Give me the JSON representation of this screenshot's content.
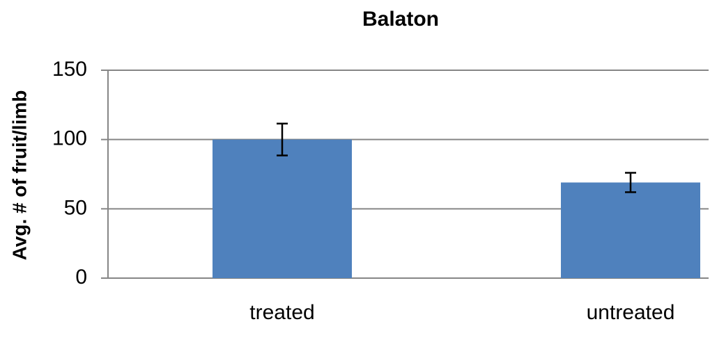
{
  "chart_data": {
    "type": "bar",
    "title": "Balaton",
    "y_label": "Avg. # of fruit/limb",
    "categories": [
      "treated",
      "untreated"
    ],
    "values": [
      100,
      69
    ],
    "errors": [
      11.5,
      7
    ],
    "color": "#4f81bd",
    "ylim": [
      0,
      150
    ],
    "yticks": [
      0,
      50,
      100,
      150
    ],
    "grid": true
  }
}
